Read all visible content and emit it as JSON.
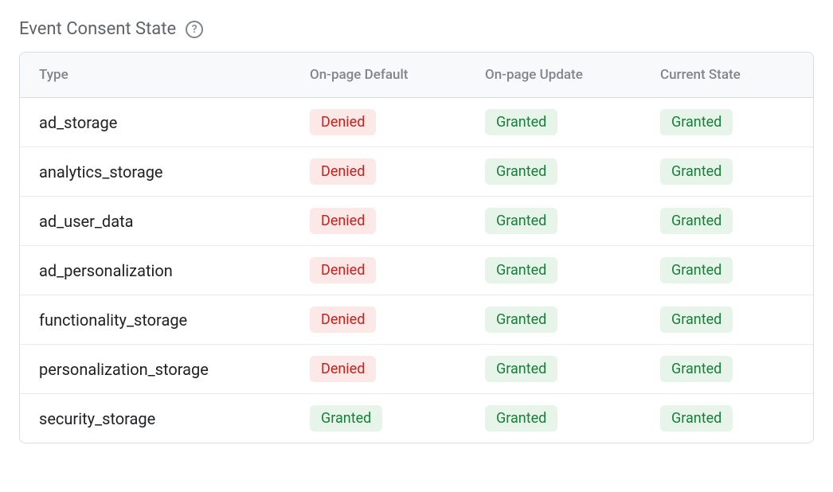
{
  "title": "Event Consent State",
  "columns": [
    "Type",
    "On-page Default",
    "On-page Update",
    "Current State"
  ],
  "rows": [
    {
      "type": "ad_storage",
      "default": "Denied",
      "update": "Granted",
      "current": "Granted"
    },
    {
      "type": "analytics_storage",
      "default": "Denied",
      "update": "Granted",
      "current": "Granted"
    },
    {
      "type": "ad_user_data",
      "default": "Denied",
      "update": "Granted",
      "current": "Granted"
    },
    {
      "type": "ad_personalization",
      "default": "Denied",
      "update": "Granted",
      "current": "Granted"
    },
    {
      "type": "functionality_storage",
      "default": "Denied",
      "update": "Granted",
      "current": "Granted"
    },
    {
      "type": "personalization_storage",
      "default": "Denied",
      "update": "Granted",
      "current": "Granted"
    },
    {
      "type": "security_storage",
      "default": "Granted",
      "update": "Granted",
      "current": "Granted"
    }
  ],
  "styling": {
    "badge_denied_bg": "#fce8e6",
    "badge_denied_text": "#c5221f",
    "badge_granted_bg": "#e6f4ea",
    "badge_granted_text": "#188038",
    "header_bg": "#f8f9fa",
    "border_color": "#dadce0",
    "title_color": "#5f6368",
    "header_text_color": "#80868b",
    "type_text_color": "#202124"
  }
}
